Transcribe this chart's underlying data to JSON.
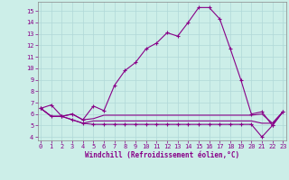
{
  "xlabel": "Windchill (Refroidissement éolien,°C)",
  "bg_color": "#cceee8",
  "line_color": "#880088",
  "grid_color": "#aadddd",
  "series1": [
    6.5,
    6.8,
    5.8,
    6.0,
    5.5,
    6.7,
    6.3,
    8.5,
    9.8,
    10.5,
    11.7,
    12.2,
    13.1,
    12.8,
    14.0,
    15.3,
    15.3,
    14.3,
    11.7,
    9.0,
    6.0,
    6.2,
    5.0,
    6.2
  ],
  "series2": [
    6.5,
    5.8,
    5.8,
    6.0,
    5.5,
    5.6,
    5.9,
    5.9,
    5.9,
    5.9,
    5.9,
    5.9,
    5.9,
    5.9,
    5.9,
    5.9,
    5.9,
    5.9,
    5.9,
    5.9,
    5.9,
    6.0,
    5.2,
    6.2
  ],
  "series3": [
    6.5,
    5.8,
    5.8,
    5.5,
    5.2,
    5.4,
    5.4,
    5.4,
    5.4,
    5.4,
    5.4,
    5.4,
    5.4,
    5.4,
    5.4,
    5.4,
    5.4,
    5.4,
    5.4,
    5.4,
    5.4,
    5.2,
    5.2,
    6.2
  ],
  "series4": [
    6.5,
    5.8,
    5.8,
    5.5,
    5.2,
    5.1,
    5.1,
    5.1,
    5.1,
    5.1,
    5.1,
    5.1,
    5.1,
    5.1,
    5.1,
    5.1,
    5.1,
    5.1,
    5.1,
    5.1,
    5.1,
    4.0,
    5.0,
    6.2
  ],
  "xlim": [
    0,
    23
  ],
  "ylim": [
    3.7,
    15.8
  ],
  "yticks": [
    4,
    5,
    6,
    7,
    8,
    9,
    10,
    11,
    12,
    13,
    14,
    15
  ],
  "xticks": [
    0,
    1,
    2,
    3,
    4,
    5,
    6,
    7,
    8,
    9,
    10,
    11,
    12,
    13,
    14,
    15,
    16,
    17,
    18,
    19,
    20,
    21,
    22,
    23
  ],
  "tick_color": "#880088",
  "label_fontsize": 5.0,
  "xlabel_fontsize": 5.5
}
